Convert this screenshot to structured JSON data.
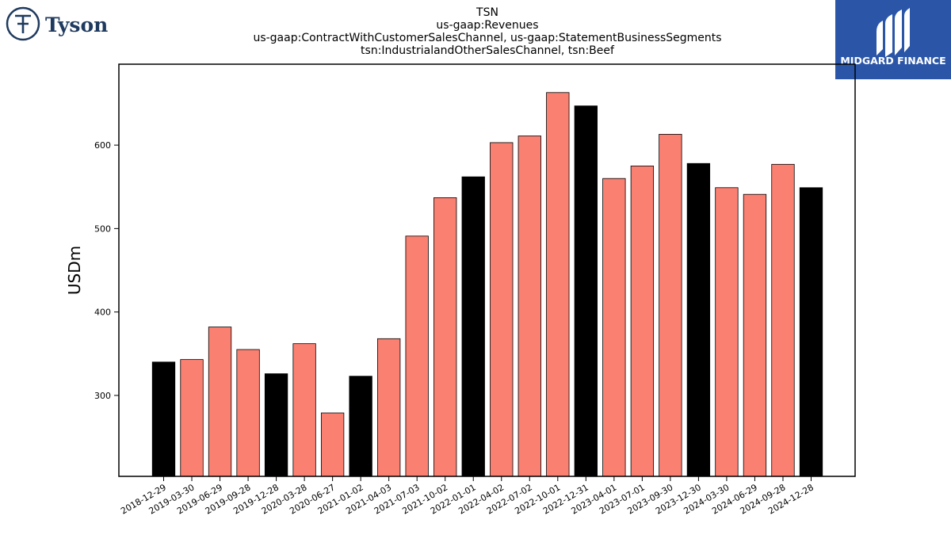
{
  "brand": {
    "left_logo_text": "Tyson",
    "right_logo_text": "MIDGARD FINANCE",
    "right_logo_bg": "#2b56a8",
    "left_logo_color": "#1f3a5f"
  },
  "chart_data": {
    "type": "bar",
    "title_lines": [
      "TSN",
      "us-gaap:Revenues",
      "us-gaap:ContractWithCustomerSalesChannel, us-gaap:StatementBusinessSegments",
      "tsn:IndustrialandOtherSalesChannel, tsn:Beef"
    ],
    "xlabel": "",
    "ylabel": "USDm",
    "ylim": [
      203,
      697
    ],
    "yticks": [
      300,
      400,
      500,
      600
    ],
    "grid": false,
    "categories": [
      "2018-12-29",
      "2019-03-30",
      "2019-06-29",
      "2019-09-28",
      "2019-12-28",
      "2020-03-28",
      "2020-06-27",
      "2021-01-02",
      "2021-04-03",
      "2021-07-03",
      "2021-10-02",
      "2022-01-01",
      "2022-04-02",
      "2022-07-02",
      "2022-10-01",
      "2022-12-31",
      "2023-04-01",
      "2023-07-01",
      "2023-09-30",
      "2023-12-30",
      "2024-03-30",
      "2024-06-29",
      "2024-09-28",
      "2024-12-28"
    ],
    "values": [
      340,
      343,
      382,
      355,
      326,
      362,
      279,
      323,
      368,
      491,
      537,
      562,
      603,
      611,
      663,
      647,
      560,
      575,
      613,
      578,
      549,
      541,
      577,
      549
    ],
    "bar_colors": [
      "#000000",
      "#fa8072",
      "#fa8072",
      "#fa8072",
      "#000000",
      "#fa8072",
      "#fa8072",
      "#000000",
      "#fa8072",
      "#fa8072",
      "#fa8072",
      "#000000",
      "#fa8072",
      "#fa8072",
      "#fa8072",
      "#000000",
      "#fa8072",
      "#fa8072",
      "#fa8072",
      "#000000",
      "#fa8072",
      "#fa8072",
      "#fa8072",
      "#000000"
    ]
  }
}
